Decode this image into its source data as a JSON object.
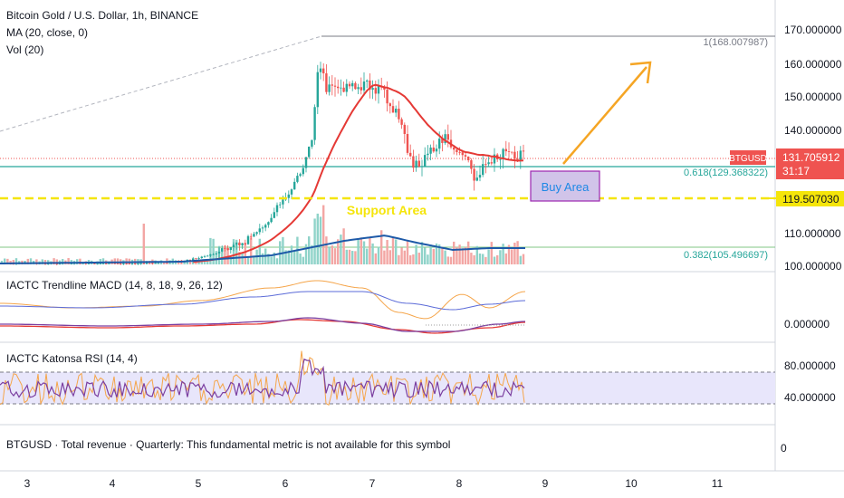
{
  "header": {
    "title": "Bitcoin Gold / U.S. Dollar, 1h, BINANCE",
    "ma_label": "MA (20, close, 0)",
    "vol_label": "Vol (20)"
  },
  "price_axis": {
    "ticks": [
      "170.000000",
      "160.000000",
      "150.000000",
      "140.000000",
      "110.000000",
      "100.000000"
    ],
    "symbol_badge": "BTGUSD",
    "current_price": "131.705912",
    "countdown": "31:17",
    "support_price": "119.507030"
  },
  "fib_labels": {
    "top": "1(168.007987)",
    "mid": "0.618(129.368322)",
    "low": "0.382(105.496697)"
  },
  "annotations": {
    "buy_area": "Buy Area",
    "support_area": "Support Area"
  },
  "macd": {
    "label": "IACTC Trendline MACD (14, 8, 18, 9, 26, 12)",
    "tick": "0.000000"
  },
  "rsi": {
    "label": "IACTC Katonsa RSI (14, 4)",
    "ticks": [
      "80.000000",
      "40.000000"
    ]
  },
  "revenue": {
    "label": "BTGUSD · Total revenue · Quarterly: This fundamental metric is not available for this symbol",
    "tick": "0"
  },
  "time_axis": {
    "labels": [
      "3",
      "4",
      "5",
      "6",
      "7",
      "8",
      "9",
      "10",
      "11"
    ]
  },
  "colors": {
    "up": "#26a69a",
    "down": "#ef5350",
    "ma": "#e53935",
    "volume_ma": "#1e5aa8",
    "support": "#f5e50a",
    "arrow": "#f5a524",
    "buy_fill": "#d1c4e9",
    "rsi_band": "#e8e6fb"
  }
}
